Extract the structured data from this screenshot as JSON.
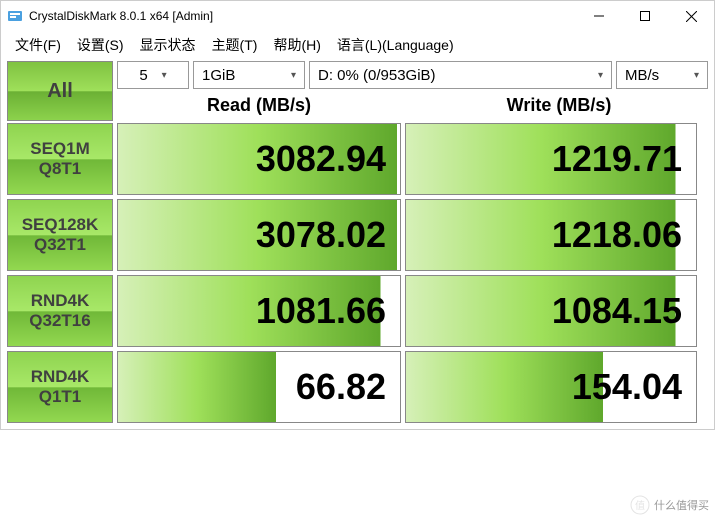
{
  "title": "CrystalDiskMark 8.0.1 x64 [Admin]",
  "menu": [
    "文件(F)",
    "设置(S)",
    "显示状态",
    "主题(T)",
    "帮助(H)",
    "语言(L)(Language)"
  ],
  "all_label": "All",
  "selects": {
    "count": "5",
    "size": "1GiB",
    "drive": "D: 0% (0/953GiB)",
    "unit": "MB/s"
  },
  "headers": {
    "read": "Read (MB/s)",
    "write": "Write (MB/s)"
  },
  "tests": [
    {
      "label1": "SEQ1M",
      "label2": "Q8T1",
      "read": "3082.94",
      "read_pct": 99,
      "write": "1219.71",
      "write_pct": 93
    },
    {
      "label1": "SEQ128K",
      "label2": "Q32T1",
      "read": "3078.02",
      "read_pct": 99,
      "write": "1218.06",
      "write_pct": 93
    },
    {
      "label1": "RND4K",
      "label2": "Q32T16",
      "read": "1081.66",
      "read_pct": 93,
      "write": "1084.15",
      "write_pct": 93
    },
    {
      "label1": "RND4K",
      "label2": "Q1T1",
      "read": "66.82",
      "read_pct": 56,
      "write": "154.04",
      "write_pct": 68
    }
  ],
  "colors": {
    "bar_light": "#d6f0b8",
    "bar_mid": "#9fe05a",
    "bar_dark": "#5fa82c",
    "btn_top": "#8fd450",
    "btn_bot": "#70b838"
  },
  "watermark": "什么值得买"
}
